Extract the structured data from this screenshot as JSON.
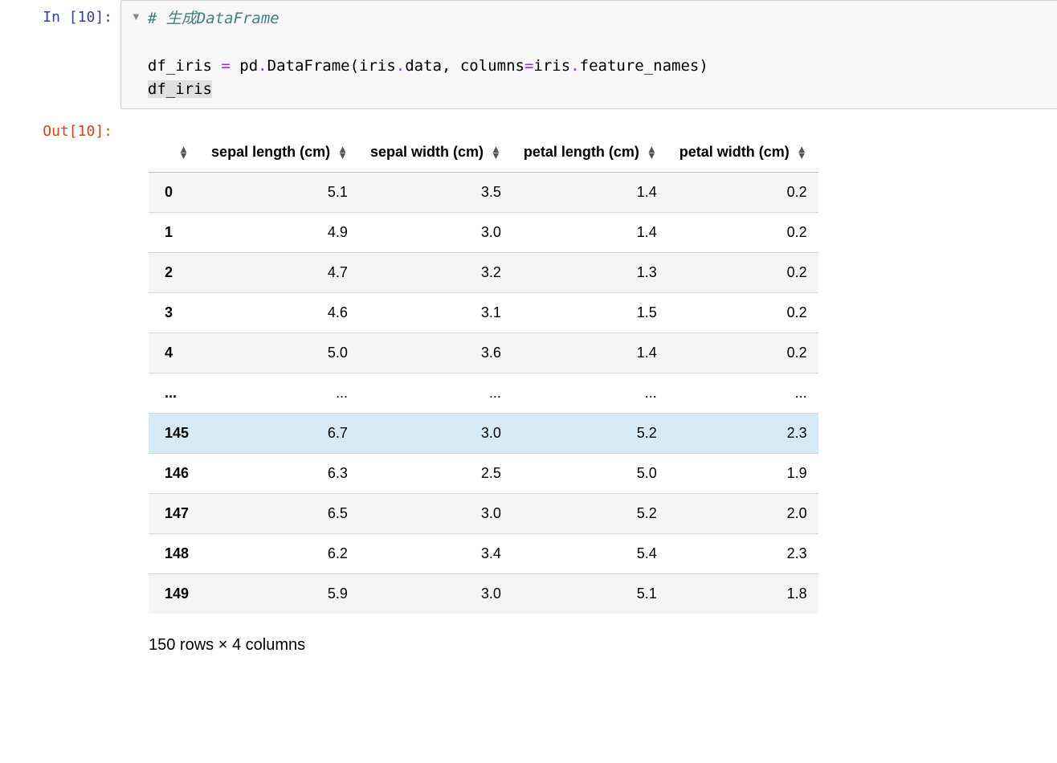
{
  "input": {
    "prompt": "In [10]:",
    "code_html": "<span class='c-comment'># 生成DataFrame</span>\n\ndf_iris <span class='c-op'>=</span> pd<span class='c-op'>.</span>DataFrame(iris<span class='c-op'>.</span>data, columns<span class='c-op'>=</span>iris<span class='c-op'>.</span>feature_names)\n<span class='c-highlight'>df_iris</span>"
  },
  "output": {
    "prompt": "Out[10]:",
    "table": {
      "columns": [
        "sepal length (cm)",
        "sepal width (cm)",
        "petal length (cm)",
        "petal width (cm)"
      ],
      "rows": [
        {
          "idx": "0",
          "vals": [
            "5.1",
            "3.5",
            "1.4",
            "0.2"
          ],
          "stripe": "even"
        },
        {
          "idx": "1",
          "vals": [
            "4.9",
            "3.0",
            "1.4",
            "0.2"
          ],
          "stripe": "odd"
        },
        {
          "idx": "2",
          "vals": [
            "4.7",
            "3.2",
            "1.3",
            "0.2"
          ],
          "stripe": "even"
        },
        {
          "idx": "3",
          "vals": [
            "4.6",
            "3.1",
            "1.5",
            "0.2"
          ],
          "stripe": "odd"
        },
        {
          "idx": "4",
          "vals": [
            "5.0",
            "3.6",
            "1.4",
            "0.2"
          ],
          "stripe": "even"
        },
        {
          "idx": "...",
          "vals": [
            "...",
            "...",
            "...",
            "..."
          ],
          "stripe": "odd"
        },
        {
          "idx": "145",
          "vals": [
            "6.7",
            "3.0",
            "5.2",
            "2.3"
          ],
          "stripe": "even",
          "highlight": true
        },
        {
          "idx": "146",
          "vals": [
            "6.3",
            "2.5",
            "5.0",
            "1.9"
          ],
          "stripe": "odd"
        },
        {
          "idx": "147",
          "vals": [
            "6.5",
            "3.0",
            "5.2",
            "2.0"
          ],
          "stripe": "even"
        },
        {
          "idx": "148",
          "vals": [
            "6.2",
            "3.4",
            "5.4",
            "2.3"
          ],
          "stripe": "odd"
        },
        {
          "idx": "149",
          "vals": [
            "5.9",
            "3.0",
            "5.1",
            "1.8"
          ],
          "stripe": "even"
        }
      ]
    },
    "summary": "150 rows × 4 columns"
  },
  "colors": {
    "prompt_in": "#303f9f",
    "prompt_out": "#d84315",
    "comment": "#408080",
    "row_even_bg": "#f5f5f5",
    "row_odd_bg": "#ffffff",
    "row_highlight_bg": "#d6ebf8",
    "border": "#d6d6d6",
    "input_bg": "#f7f7f7"
  }
}
